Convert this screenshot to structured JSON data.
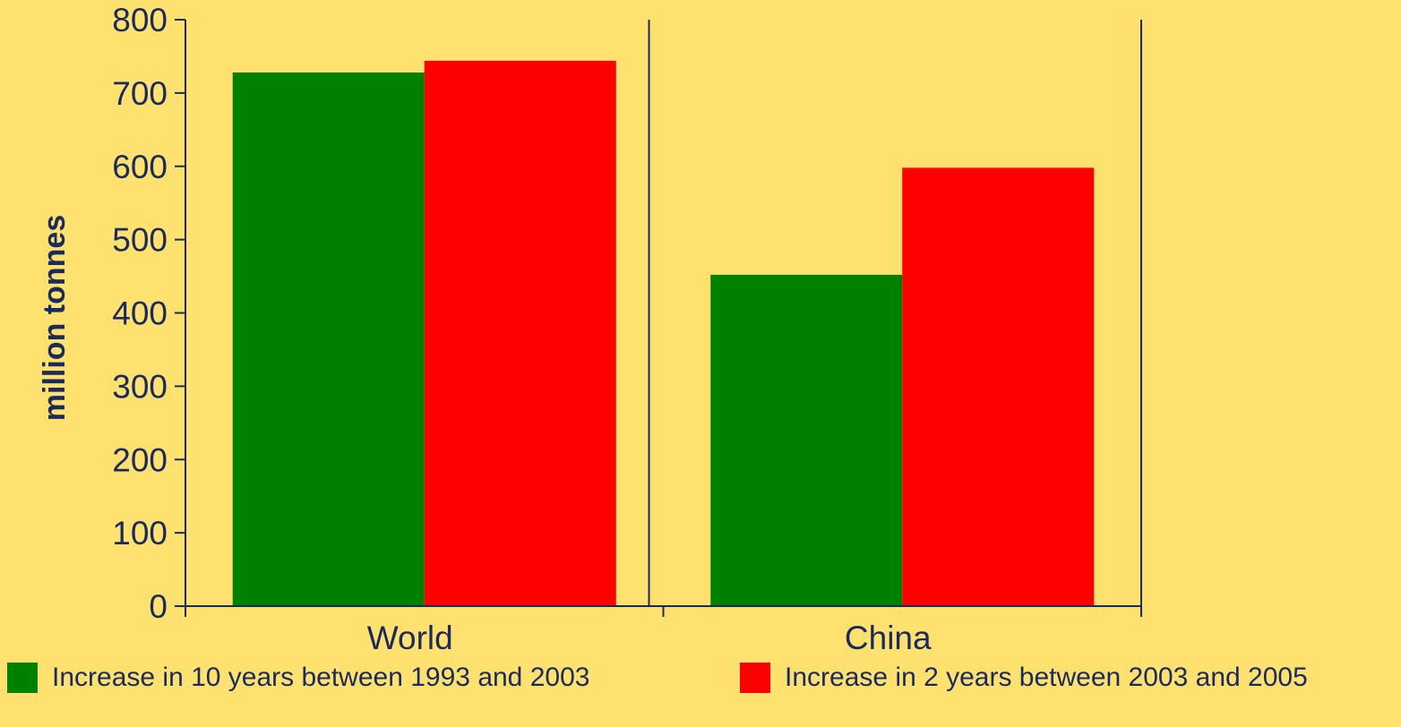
{
  "chart_data": {
    "type": "bar",
    "title": "",
    "xlabel": "",
    "ylabel": "million tonnes",
    "categories": [
      "World",
      "China"
    ],
    "series": [
      {
        "name": "Increase in 10 years between 1993 and 2003",
        "color": "#008000",
        "values": [
          728,
          452
        ]
      },
      {
        "name": "Increase in 2 years between 2003 and 2005",
        "color": "#FF0000",
        "values": [
          744,
          598
        ]
      }
    ],
    "ylim": [
      0,
      800
    ],
    "yticks": [
      "0",
      "100",
      "200",
      "300",
      "400",
      "500",
      "600",
      "700",
      "800"
    ],
    "grid": false,
    "legend_position": "bottom",
    "axis_color": "#1B2A5C",
    "background_color": "#FFE170"
  }
}
